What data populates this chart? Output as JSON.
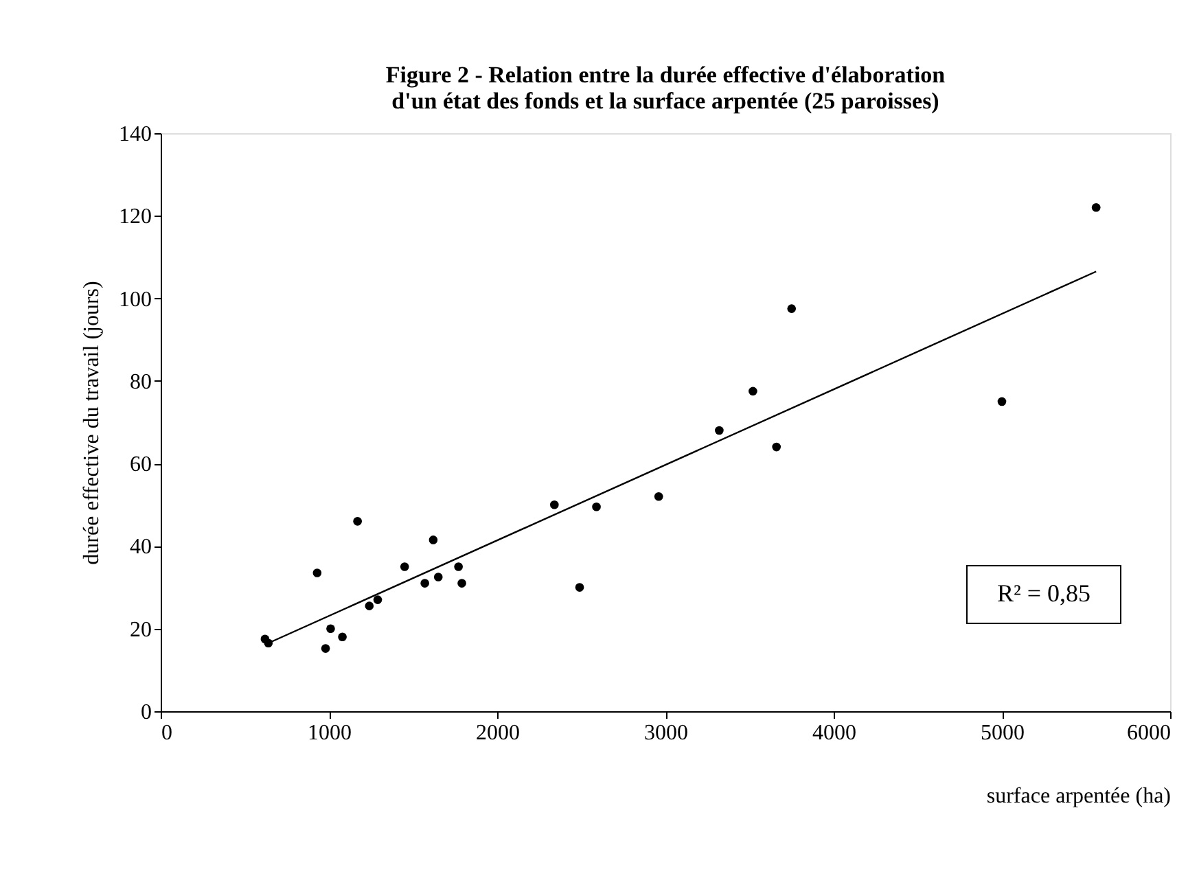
{
  "chart_data": {
    "type": "scatter",
    "title": "Figure 2 - Relation entre la durée effective d'élaboration\nd'un état des fonds et la surface arpentée (25 paroisses)",
    "xlabel": "surface arpentée (ha)",
    "ylabel": "durée effective du travail (jours)",
    "annotations": [
      "R² = 0,85"
    ],
    "series": [
      {
        "color": "#000000",
        "marker": "circle",
        "x": [
          620,
          640,
          930,
          980,
          1010,
          1080,
          1170,
          1240,
          1290,
          1450,
          1570,
          1620,
          1650,
          1770,
          1790,
          2340,
          2490,
          2590,
          2960,
          3320,
          3520,
          3660,
          3750,
          5000,
          5560
        ],
        "values": [
          17.5,
          16.5,
          33.5,
          15.2,
          20,
          18,
          46,
          25.5,
          27,
          35,
          31,
          41.5,
          32.5,
          35,
          31,
          50,
          30,
          49.5,
          52,
          68,
          77.5,
          64,
          97.5,
          75,
          122
        ]
      },
      {
        "type": "line",
        "color": "#000000",
        "line_style": "solid",
        "x": [
          640,
          5560
        ],
        "values": [
          16.5,
          106.5
        ]
      }
    ],
    "xlim": [
      0,
      6000
    ],
    "xticks": [
      0,
      1000,
      2000,
      3000,
      4000,
      5000,
      6000
    ],
    "ylim": [
      0,
      140
    ],
    "yticks": [
      0,
      20,
      40,
      60,
      80,
      100,
      120,
      140
    ],
    "grid": false
  }
}
